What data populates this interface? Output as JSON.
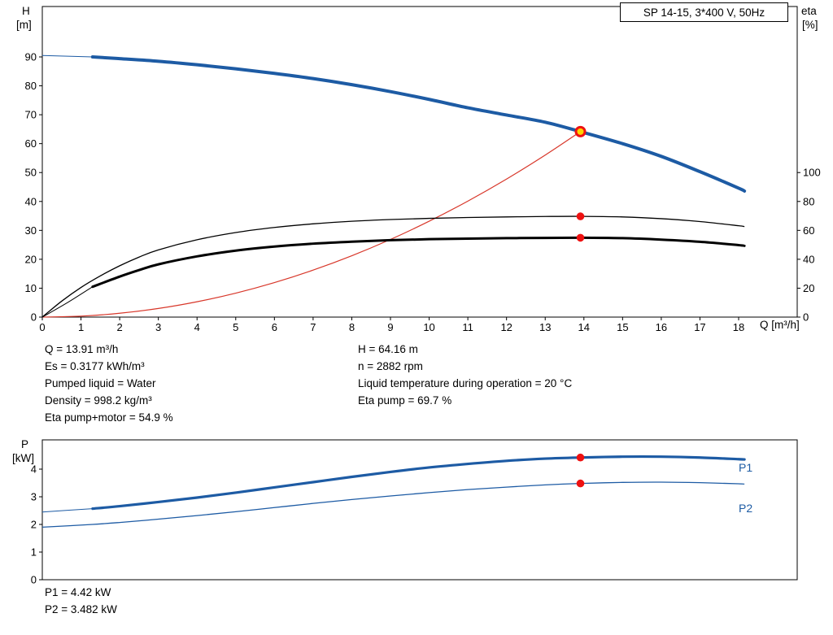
{
  "pump_label": "SP 14-15, 3*400 V, 50Hz",
  "labels": {
    "h": "H",
    "m_unit": "[m]",
    "eta": "eta",
    "pct_unit": "[%]",
    "q_axis": "Q [m³/h]",
    "p": "P",
    "kw_unit": "[kW]",
    "p1": "P1",
    "p2": "P2"
  },
  "info": {
    "left": [
      "Q = 13.91 m³/h",
      "Es = 0.3177 kWh/m³",
      "Pumped liquid = Water",
      "Density = 998.2 kg/m³",
      "Eta pump+motor = 54.9 %"
    ],
    "right": [
      "H = 64.16 m",
      "n = 2882 rpm",
      "Liquid temperature during operation = 20 °C",
      "Eta pump = 69.7 %"
    ],
    "power": [
      "P1 = 4.42 kW",
      "P2 = 3.482 kW"
    ]
  },
  "colors": {
    "curve_blue": "#1d5ba4",
    "curve_red": "#d8372a",
    "curve_black": "#000000",
    "marker_red": "#ee1111",
    "marker_yellow": "#ffd400",
    "axis": "#000000"
  },
  "chart_data": [
    {
      "name": "hq-eta-chart",
      "type": "line",
      "title": "SP 14-15, 3*400 V, 50Hz",
      "x_axis": {
        "label": "Q [m³/h]",
        "min": 0,
        "max": 19.5,
        "ticks": [
          0,
          1,
          2,
          3,
          4,
          5,
          6,
          7,
          8,
          9,
          10,
          11,
          12,
          13,
          14,
          15,
          16,
          17,
          18
        ]
      },
      "y_left": {
        "label": "H [m]",
        "min": 0,
        "max": 107,
        "ticks": [
          0,
          10,
          20,
          30,
          40,
          50,
          60,
          70,
          80,
          90
        ]
      },
      "y_right": {
        "label": "eta [%]",
        "min": 0,
        "max": 214,
        "ticks": [
          0,
          20,
          40,
          60,
          80,
          100
        ]
      },
      "duty_point": {
        "q": 13.91,
        "h": 64.16,
        "eta_pump": 69.7,
        "eta_pump_motor": 54.9
      },
      "series": [
        {
          "name": "system-curve",
          "axis": "left",
          "color_key": "curve_red",
          "width": 1.2,
          "points": [
            [
              0,
              0
            ],
            [
              1,
              0.33
            ],
            [
              2,
              1.33
            ],
            [
              3,
              2.98
            ],
            [
              4,
              5.31
            ],
            [
              5,
              8.29
            ],
            [
              6,
              11.94
            ],
            [
              7,
              16.25
            ],
            [
              8,
              21.22
            ],
            [
              9,
              26.86
            ],
            [
              10,
              33.16
            ],
            [
              11,
              40.12
            ],
            [
              12,
              47.75
            ],
            [
              13,
              56.04
            ],
            [
              13.91,
              64.16
            ]
          ]
        },
        {
          "name": "h-curve",
          "axis": "left",
          "color_key": "curve_blue",
          "width": 4,
          "thin_until": 1.3,
          "thin_width": 1,
          "points": [
            [
              0,
              90.5
            ],
            [
              1.3,
              90
            ],
            [
              2,
              89.4
            ],
            [
              3,
              88.5
            ],
            [
              4,
              87.3
            ],
            [
              5,
              85.9
            ],
            [
              6,
              84.3
            ],
            [
              7,
              82.5
            ],
            [
              8,
              80.4
            ],
            [
              9,
              78
            ],
            [
              10,
              75.3
            ],
            [
              11,
              72.4
            ],
            [
              12,
              69.9
            ],
            [
              13,
              67.4
            ],
            [
              13.91,
              64.16
            ],
            [
              15,
              60
            ],
            [
              16,
              55.6
            ],
            [
              17,
              50.3
            ],
            [
              18,
              44.6
            ],
            [
              18.15,
              43.6
            ]
          ]
        },
        {
          "name": "eta-pump-curve",
          "axis": "right",
          "color_key": "curve_black",
          "width": 1.3,
          "points": [
            [
              0,
              0
            ],
            [
              0.5,
              11
            ],
            [
              1,
              20.5
            ],
            [
              1.5,
              28.5
            ],
            [
              2,
              35.5
            ],
            [
              2.5,
              41.5
            ],
            [
              3,
              46.5
            ],
            [
              4,
              53.5
            ],
            [
              5,
              58.5
            ],
            [
              6,
              62
            ],
            [
              7,
              64.5
            ],
            [
              8,
              66.3
            ],
            [
              9,
              67.5
            ],
            [
              10,
              68.3
            ],
            [
              11,
              68.9
            ],
            [
              12,
              69.3
            ],
            [
              13,
              69.6
            ],
            [
              13.91,
              69.7
            ],
            [
              15,
              69.3
            ],
            [
              16,
              68.1
            ],
            [
              17,
              66.1
            ],
            [
              18,
              63.2
            ],
            [
              18.15,
              62.6
            ]
          ]
        },
        {
          "name": "eta-pump-motor-curve",
          "axis": "right",
          "color_key": "curve_black",
          "width": 3,
          "thin_until": 1.3,
          "thin_width": 1,
          "points": [
            [
              0,
              0
            ],
            [
              0.65,
              10
            ],
            [
              1.3,
              21
            ],
            [
              2,
              28
            ],
            [
              2.5,
              32.5
            ],
            [
              3,
              36.5
            ],
            [
              4,
              42
            ],
            [
              5,
              46
            ],
            [
              6,
              48.8
            ],
            [
              7,
              50.8
            ],
            [
              8,
              52.2
            ],
            [
              9,
              53.2
            ],
            [
              10,
              53.9
            ],
            [
              11,
              54.3
            ],
            [
              12,
              54.6
            ],
            [
              13,
              54.8
            ],
            [
              13.91,
              54.9
            ],
            [
              15,
              54.6
            ],
            [
              16,
              53.6
            ],
            [
              17,
              52.1
            ],
            [
              18,
              49.8
            ],
            [
              18.15,
              49.3
            ]
          ]
        }
      ],
      "markers": [
        {
          "name": "duty-point-marker",
          "q": 13.91,
          "v": 64.16,
          "axis": "left",
          "r": 5.5,
          "fill_key": "marker_yellow",
          "stroke_key": "marker_red",
          "stroke_width": 3
        },
        {
          "name": "eta-pump-marker",
          "q": 13.91,
          "v": 69.7,
          "axis": "right",
          "r": 4.8,
          "fill_key": "marker_red"
        },
        {
          "name": "eta-pump-motor-marker",
          "q": 13.91,
          "v": 54.9,
          "axis": "right",
          "r": 4.8,
          "fill_key": "marker_red"
        }
      ]
    },
    {
      "name": "power-chart",
      "type": "line",
      "x_axis": {
        "label": "Q [m³/h]",
        "min": 0,
        "max": 19.5,
        "ticks": []
      },
      "y_left": {
        "label": "P [kW]",
        "min": 0,
        "max": 5.06,
        "ticks": [
          0,
          1,
          2,
          3,
          4
        ]
      },
      "duty_point": {
        "q": 13.91,
        "p1": 4.42,
        "p2": 3.482
      },
      "series": [
        {
          "name": "p1-curve",
          "axis": "left",
          "color_key": "curve_blue",
          "width": 3.2,
          "thin_until": 1.3,
          "thin_width": 1,
          "points": [
            [
              0,
              2.45
            ],
            [
              1.3,
              2.57
            ],
            [
              2,
              2.66
            ],
            [
              3,
              2.81
            ],
            [
              4,
              2.97
            ],
            [
              5,
              3.15
            ],
            [
              6,
              3.34
            ],
            [
              7,
              3.53
            ],
            [
              8,
              3.72
            ],
            [
              9,
              3.9
            ],
            [
              10,
              4.06
            ],
            [
              11,
              4.19
            ],
            [
              12,
              4.3
            ],
            [
              13,
              4.38
            ],
            [
              13.91,
              4.42
            ],
            [
              15,
              4.45
            ],
            [
              16,
              4.45
            ],
            [
              17,
              4.42
            ],
            [
              18,
              4.36
            ],
            [
              18.15,
              4.35
            ]
          ]
        },
        {
          "name": "p2-curve",
          "axis": "left",
          "color_key": "curve_blue",
          "width": 1.3,
          "points": [
            [
              0,
              1.9
            ],
            [
              1.3,
              2
            ],
            [
              2,
              2.07
            ],
            [
              3,
              2.19
            ],
            [
              4,
              2.32
            ],
            [
              5,
              2.46
            ],
            [
              6,
              2.61
            ],
            [
              7,
              2.76
            ],
            [
              8,
              2.9
            ],
            [
              9,
              3.03
            ],
            [
              10,
              3.15
            ],
            [
              11,
              3.26
            ],
            [
              12,
              3.35
            ],
            [
              13,
              3.43
            ],
            [
              13.91,
              3.482
            ],
            [
              15,
              3.52
            ],
            [
              16,
              3.53
            ],
            [
              17,
              3.51
            ],
            [
              18,
              3.47
            ],
            [
              18.15,
              3.46
            ]
          ]
        }
      ],
      "markers": [
        {
          "name": "p1-marker",
          "q": 13.91,
          "v": 4.42,
          "axis": "left",
          "r": 4.8,
          "fill_key": "marker_red"
        },
        {
          "name": "p2-marker",
          "q": 13.91,
          "v": 3.482,
          "axis": "left",
          "r": 4.8,
          "fill_key": "marker_red"
        }
      ]
    }
  ]
}
